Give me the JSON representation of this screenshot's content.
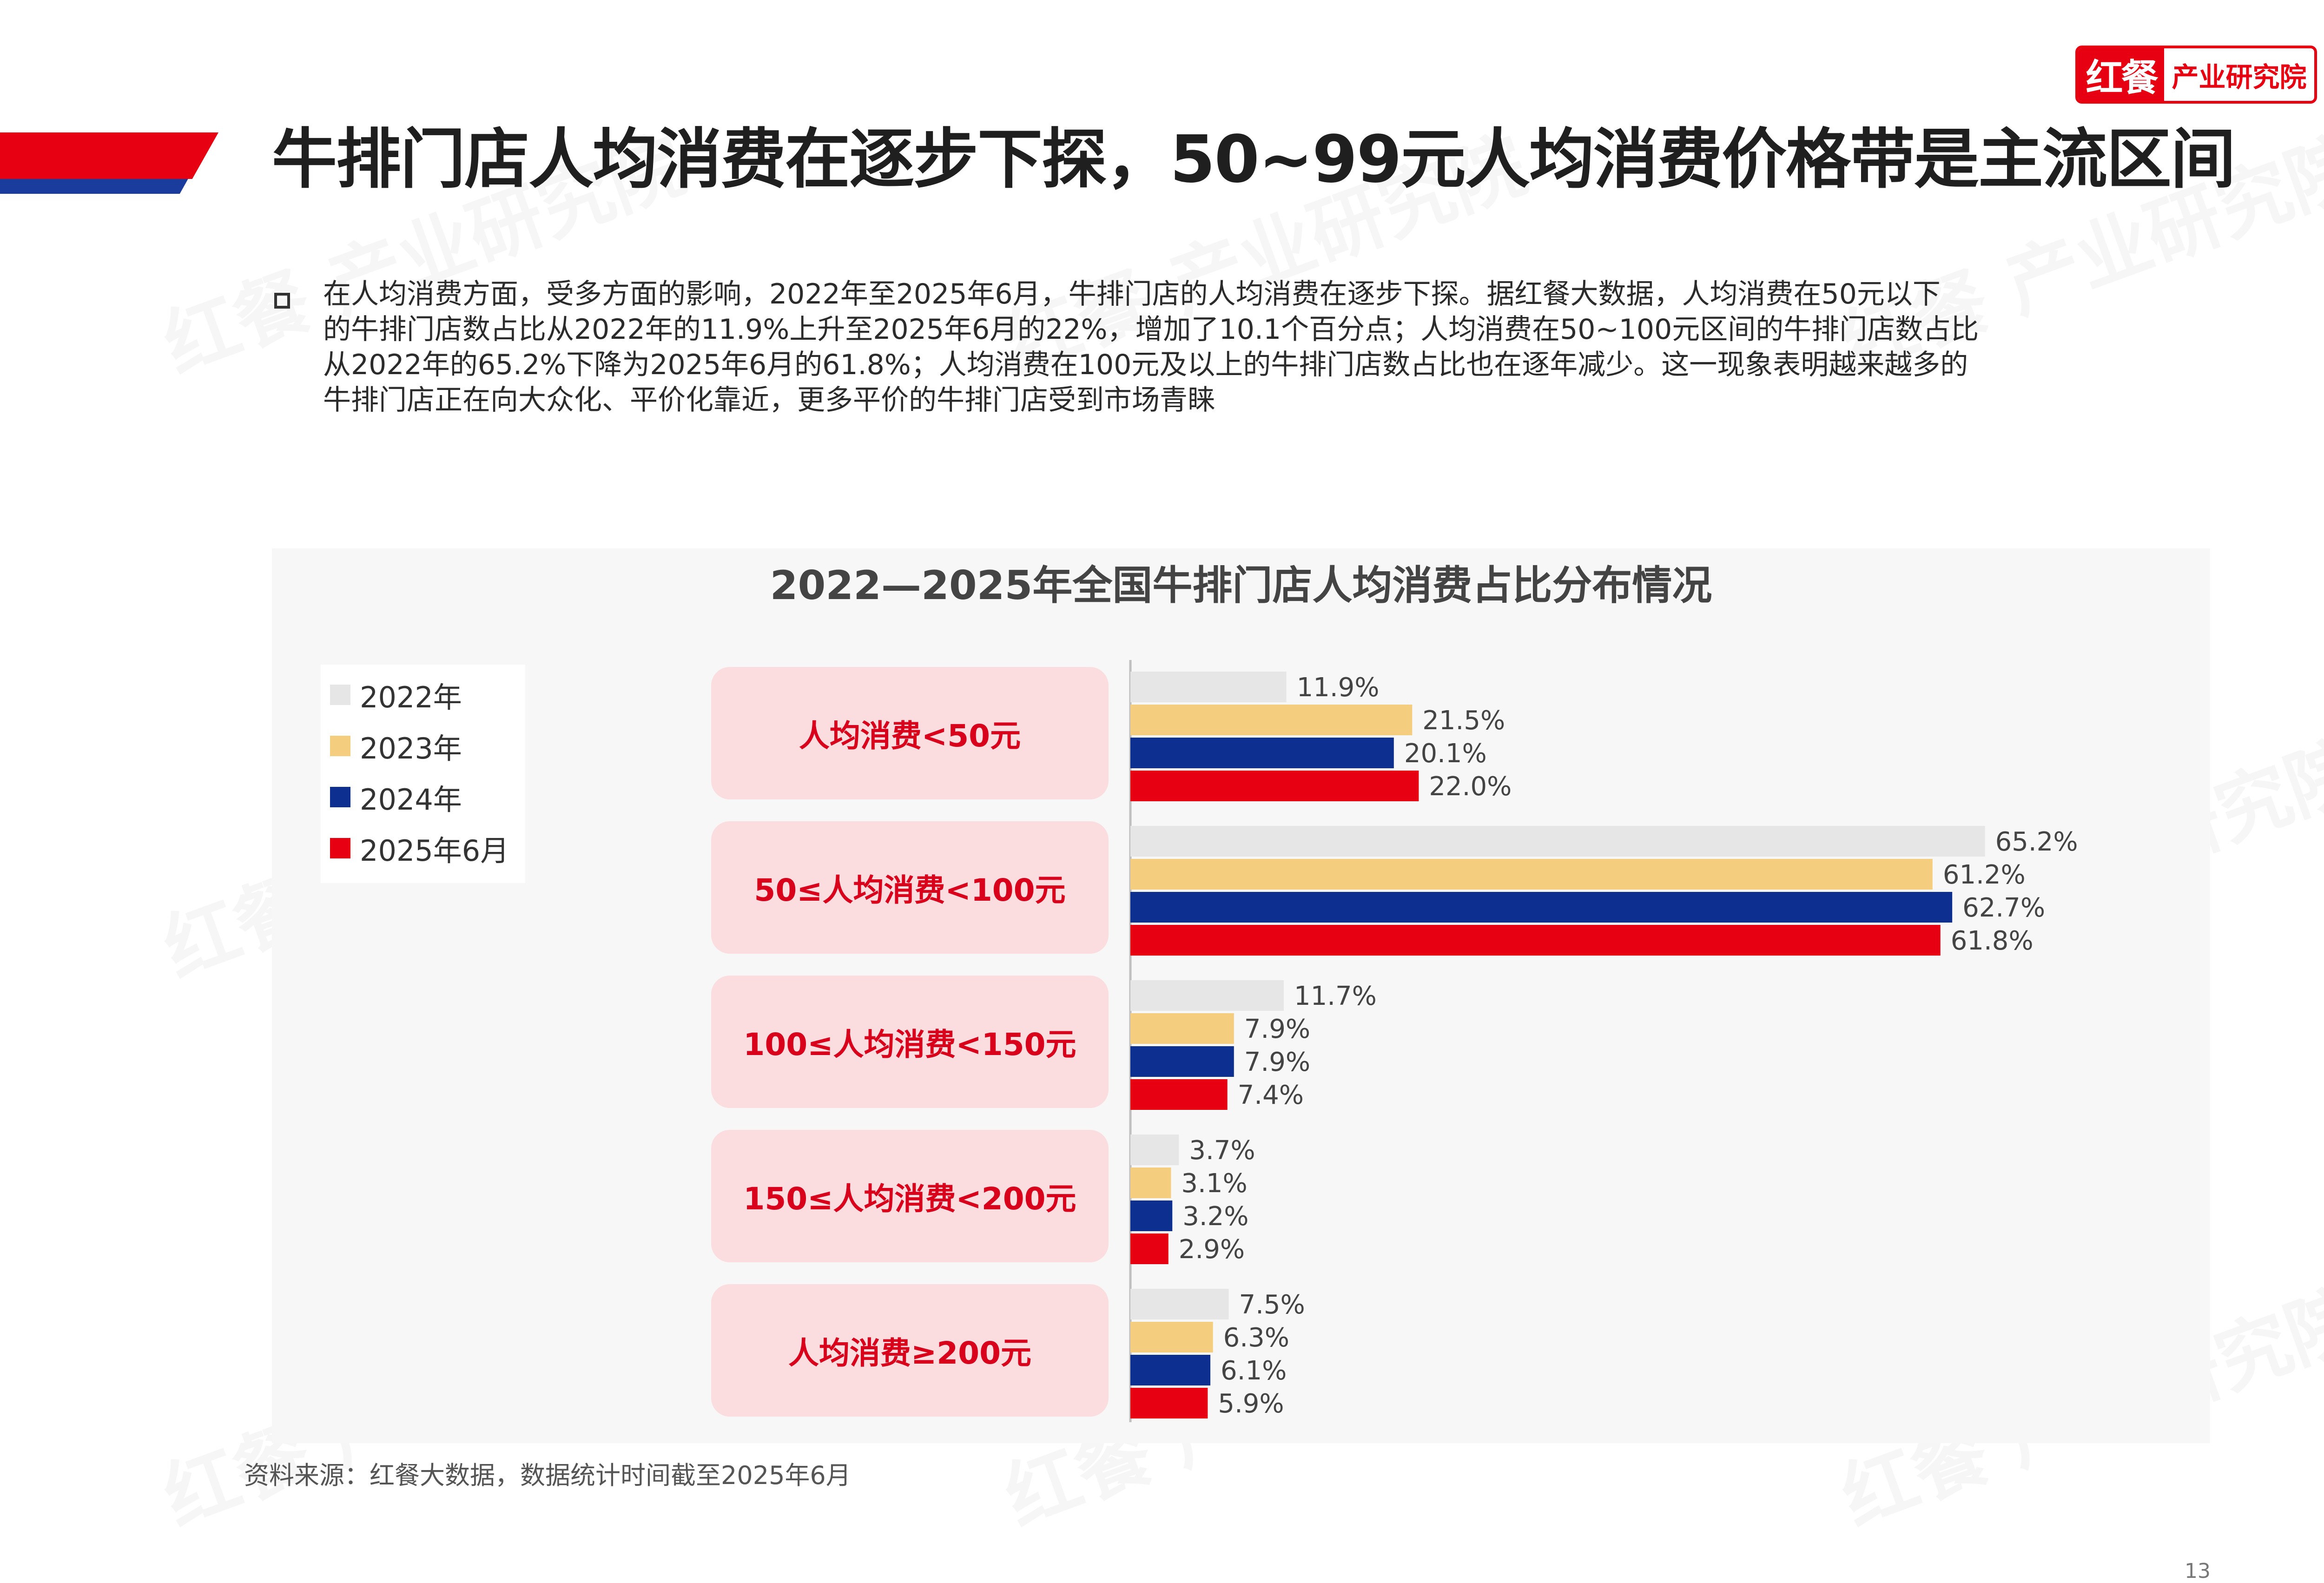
{
  "logo": {
    "mark": "红餐",
    "text": "产业研究院"
  },
  "header": {
    "title": "牛排门店人均消费在逐步下探，50~99元人均消费价格带是主流区间"
  },
  "intro": {
    "lines": [
      "在人均消费方面，受多方面的影响，2022年至2025年6月，牛排门店的人均消费在逐步下探。据红餐大数据，人均消费在50元以下",
      "的牛排门店数占比从2022年的11.9%上升至2025年6月的22%，增加了10.1个百分点；人均消费在50~100元区间的牛排门店数占比",
      "从2022年的65.2%下降为2025年6月的61.8%；人均消费在100元及以上的牛排门店数占比也在逐年减少。这一现象表明越来越多的",
      "牛排门店正在向大众化、平价化靠近，更多平价的牛排门店受到市场青睐"
    ]
  },
  "chart_data": {
    "type": "bar",
    "orientation": "horizontal",
    "title": "2022—2025年全国牛排门店人均消费占比分布情况",
    "categories": [
      "人均消费<50元",
      "50≤人均消费<100元",
      "100≤人均消费<150元",
      "150≤人均消费<200元",
      "人均消费≥200元"
    ],
    "series": [
      {
        "name": "2022年",
        "color": "#e6e6e6",
        "values": [
          11.9,
          65.2,
          11.7,
          3.7,
          7.5
        ],
        "labels": [
          "11.9%",
          "65.2%",
          "11.7%",
          "3.7%",
          "7.5%"
        ]
      },
      {
        "name": "2023年",
        "color": "#f5cd7e",
        "values": [
          21.5,
          61.2,
          7.9,
          3.1,
          6.3
        ],
        "labels": [
          "21.5%",
          "61.2%",
          "7.9%",
          "3.1%",
          "6.3%"
        ]
      },
      {
        "name": "2024年",
        "color": "#0d2f8f",
        "values": [
          20.1,
          62.7,
          7.9,
          3.2,
          6.1
        ],
        "labels": [
          "20.1%",
          "62.7%",
          "7.9%",
          "3.2%",
          "6.1%"
        ]
      },
      {
        "name": "2025年6月",
        "color": "#e60012",
        "values": [
          22.0,
          61.8,
          7.4,
          2.9,
          5.9
        ],
        "labels": [
          "22.0%",
          "61.8%",
          "7.4%",
          "2.9%",
          "5.9%"
        ]
      }
    ],
    "legend": "top-left",
    "grid": false
  },
  "source": "资料来源：红餐大数据，数据统计时间截至2025年6月",
  "page_number": "13"
}
